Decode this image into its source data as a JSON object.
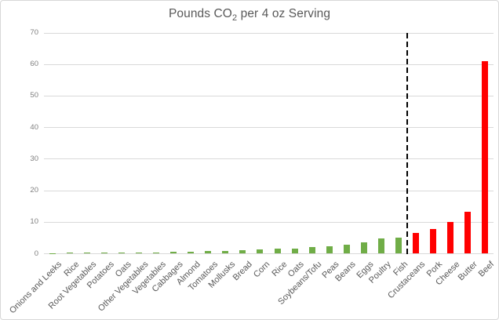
{
  "chart_data": {
    "type": "bar",
    "title": {
      "prefix": "Pounds CO",
      "subscript": "2",
      "suffix": " per 4 oz Serving",
      "full": "Pounds CO2 per 4 oz Serving"
    },
    "categories": [
      "Onions and Leeks",
      "Rice",
      "Root Vegetables",
      "Potatoes",
      "Oats",
      "Other Vegetables",
      "Vegetables",
      "Cabbages",
      "Almond",
      "Tomatoes",
      "Mollusks",
      "Bread",
      "Corn",
      "Rice",
      "Oats",
      "Soybeans/Tofu",
      "Peas",
      "Beans",
      "Eggs",
      "Poultry",
      "Fish",
      "Crustaceans",
      "Pork",
      "Cheese",
      "Butter",
      "Beef"
    ],
    "values": [
      0.2,
      0.25,
      0.25,
      0.3,
      0.3,
      0.4,
      0.45,
      0.5,
      0.7,
      0.75,
      0.9,
      1.0,
      1.3,
      1.5,
      1.6,
      2.2,
      2.4,
      2.9,
      3.7,
      4.8,
      5.0,
      6.5,
      7.8,
      10,
      13.3,
      61
    ],
    "xlabel": "",
    "ylabel": "",
    "ylim": [
      0,
      70
    ],
    "yticks": [
      0,
      10,
      20,
      30,
      40,
      50,
      60,
      70
    ],
    "grid": true,
    "legend": false,
    "high_impact_start_index": 21,
    "divider": {
      "style": "dashed",
      "between": [
        "Fish",
        "Crustaceans"
      ]
    },
    "colors": {
      "low_impact_bar": "#70AD47",
      "high_impact_bar": "#FF0000",
      "gridline": "#D9D9D9",
      "axis_tick_text": "#808080",
      "category_text": "#595959",
      "title_text": "#595959",
      "divider": "#000000"
    }
  }
}
